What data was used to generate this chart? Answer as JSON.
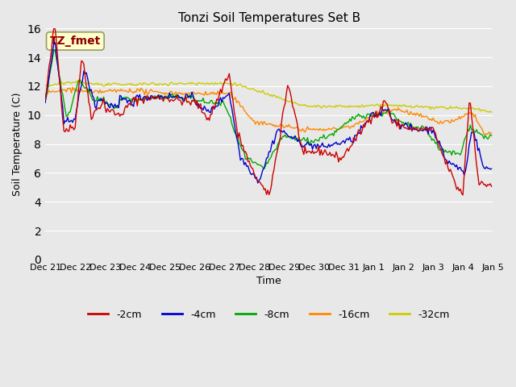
{
  "title": "Tonzi Soil Temperatures Set B",
  "xlabel": "Time",
  "ylabel": "Soil Temperature (C)",
  "annotation": "TZ_fmet",
  "ylim": [
    0,
    16
  ],
  "yticks": [
    0,
    2,
    4,
    6,
    8,
    10,
    12,
    14,
    16
  ],
  "series_colors": [
    "#cc0000",
    "#0000cc",
    "#00aa00",
    "#ff8800",
    "#cccc00"
  ],
  "series_labels": [
    "-2cm",
    "-4cm",
    "-8cm",
    "-16cm",
    "-32cm"
  ],
  "background_color": "#e8e8e8",
  "n_points": 360,
  "tick_positions": [
    0,
    24,
    48,
    72,
    96,
    120,
    144,
    168,
    192,
    216,
    240,
    264,
    288,
    312,
    336,
    360
  ],
  "tick_labels": [
    "Dec 21",
    "Dec 22",
    "Dec 23",
    "Dec 24",
    "Dec 25",
    "Dec 26",
    "Dec 27",
    "Dec 28",
    "Dec 29",
    "Dec 30",
    "Dec 31",
    "Jan 1",
    "Jan 2",
    "Jan 3",
    "Jan 4",
    "Jan 5"
  ]
}
